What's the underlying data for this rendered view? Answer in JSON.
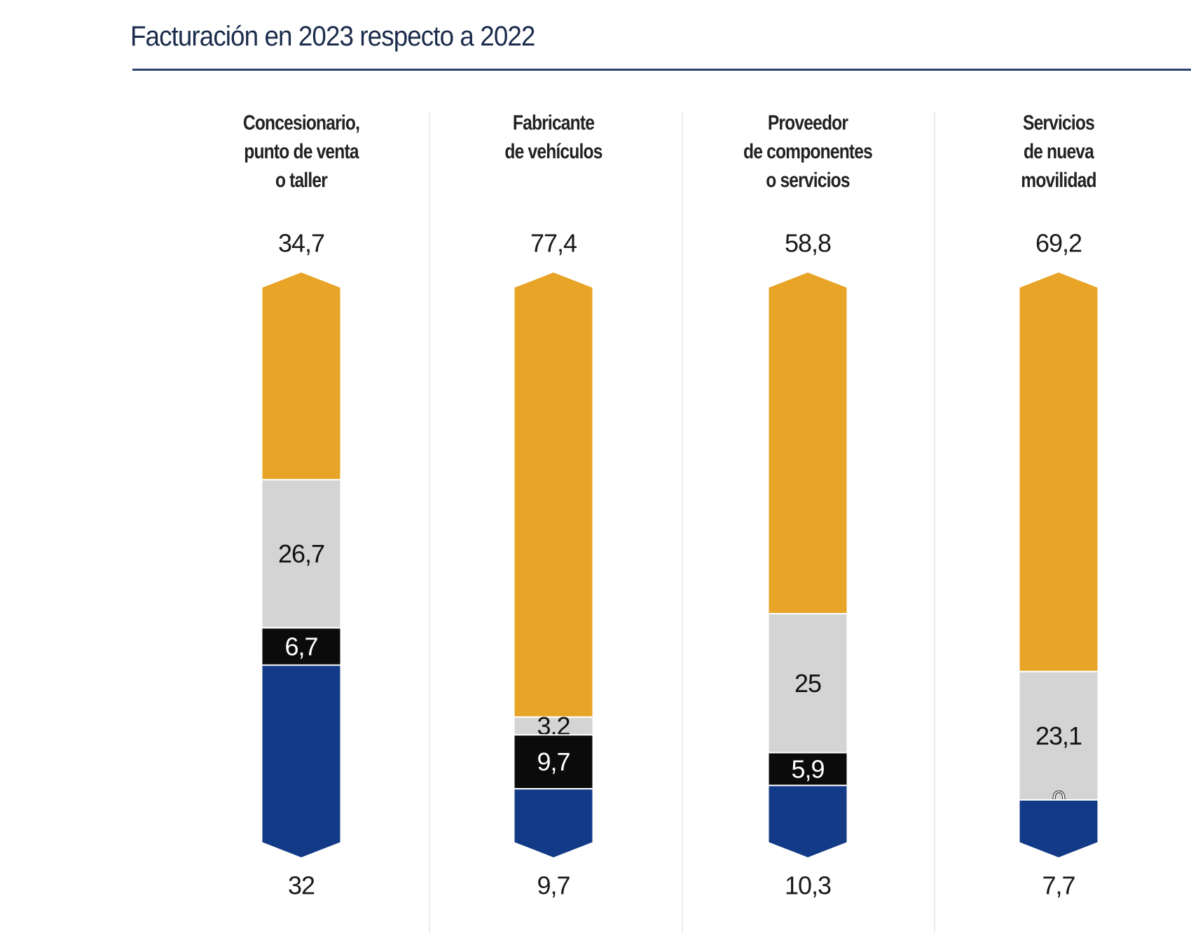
{
  "chart_data": {
    "type": "bar",
    "stacked": true,
    "orientation": "vertical",
    "normalized_percent": true,
    "title": "Facturación en 2023 respecto a 2022",
    "categories": [
      [
        "Concesionario,",
        "punto de venta",
        "o taller"
      ],
      [
        "Fabricante",
        "de vehículos"
      ],
      [
        "Proveedor",
        "de componentes",
        "o servicios"
      ],
      [
        "Servicios",
        "de nueva",
        "movilidad"
      ]
    ],
    "series": [
      {
        "color": "#E8A427",
        "values": [
          34.7,
          77.4,
          58.8,
          69.2
        ],
        "labels": [
          "34,7",
          "77,4",
          "58,8",
          "69,2"
        ],
        "label_position": "above"
      },
      {
        "color": "#D4D4D4",
        "values": [
          26.7,
          3.2,
          25,
          23.1
        ],
        "labels": [
          "26,7",
          "3,2",
          "25",
          "23,1"
        ],
        "label_position": "inside"
      },
      {
        "color": "#0B0B0B",
        "values": [
          6.7,
          9.7,
          5.9,
          0
        ],
        "labels": [
          "6,7",
          "9,7",
          "5,9",
          "0"
        ],
        "label_position": "inside"
      },
      {
        "color": "#133A87",
        "values": [
          32,
          9.7,
          10.3,
          7.7
        ],
        "labels": [
          "32",
          "9,7",
          "10,3",
          "7,7"
        ],
        "label_position": "below"
      }
    ],
    "grid": false,
    "legend": "none"
  }
}
